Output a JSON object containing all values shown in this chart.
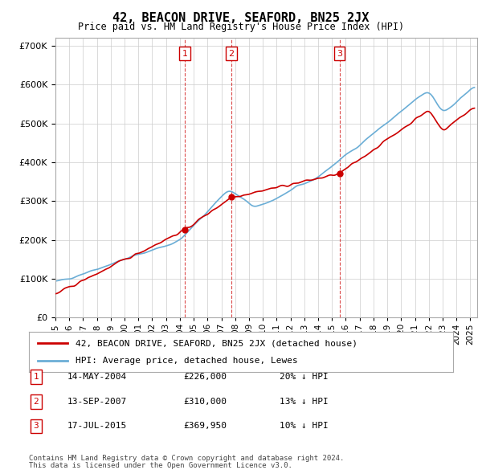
{
  "title": "42, BEACON DRIVE, SEAFORD, BN25 2JX",
  "subtitle": "Price paid vs. HM Land Registry's House Price Index (HPI)",
  "footer1": "Contains HM Land Registry data © Crown copyright and database right 2024.",
  "footer2": "This data is licensed under the Open Government Licence v3.0.",
  "legend_line1": "42, BEACON DRIVE, SEAFORD, BN25 2JX (detached house)",
  "legend_line2": "HPI: Average price, detached house, Lewes",
  "transactions": [
    {
      "num": 1,
      "date": "14-MAY-2004",
      "price": "£226,000",
      "hpi": "20% ↓ HPI",
      "year": 2004.37
    },
    {
      "num": 2,
      "date": "13-SEP-2007",
      "price": "£310,000",
      "hpi": "13% ↓ HPI",
      "year": 2007.71
    },
    {
      "num": 3,
      "date": "17-JUL-2015",
      "price": "£369,950",
      "hpi": "10% ↓ HPI",
      "year": 2015.54
    }
  ],
  "transaction_prices": [
    226000,
    310000,
    369950
  ],
  "hpi_color": "#6baed6",
  "price_color": "#cc0000",
  "vline_color": "#cc0000",
  "grid_color": "#cccccc",
  "background_color": "#ffffff",
  "ylim": [
    0,
    720000
  ],
  "xlim_start": 1995.0,
  "xlim_end": 2025.5
}
